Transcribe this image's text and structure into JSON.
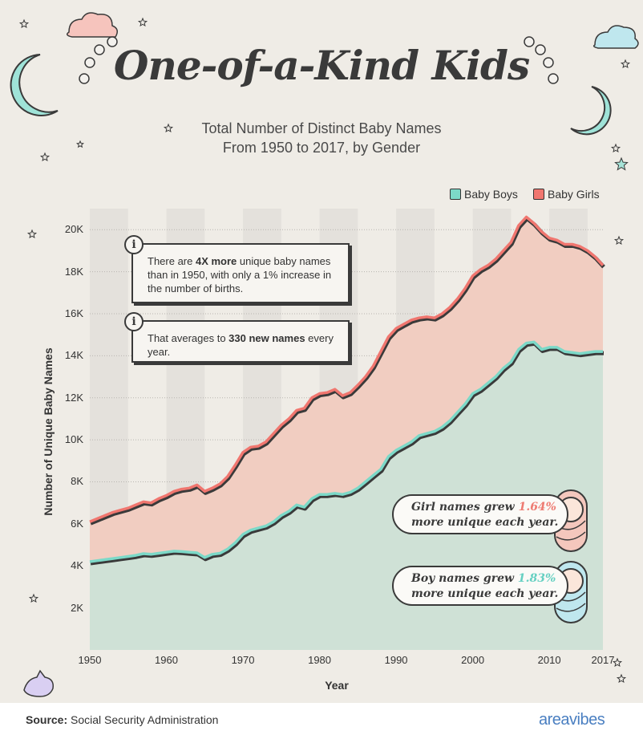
{
  "title": "One-of-a-Kind Kids",
  "subtitle_line1": "Total Number of Distinct Baby Names",
  "subtitle_line2": "From 1950 to 2017, by Gender",
  "legend": {
    "boys": "Baby Boys",
    "girls": "Baby Girls"
  },
  "colors": {
    "boys": "#7cd9c8",
    "girls": "#f0766f",
    "boys_fill": "#cfe1d6",
    "girls_fill": "#f1cdc1",
    "outline": "#3a3a3a",
    "band": "#e4e1dc",
    "grid": "#b8b5b0"
  },
  "notes": [
    {
      "pre": "There are ",
      "bold": "4X more",
      "post": " unique baby names than in 1950, with only a 1% increase in the number of births."
    },
    {
      "pre": "That averages to ",
      "bold": "330 new names",
      "post": " every year."
    }
  ],
  "callouts": {
    "girls": {
      "pre": "Girl names grew ",
      "value": "1.64%",
      "post": "more unique each year."
    },
    "boys": {
      "pre": "Boy names grew ",
      "value": "1.83%",
      "post": "more unique each year."
    }
  },
  "footer": {
    "source_label": "Source:",
    "source_text": "Social Security Administration",
    "brand": "areavibes"
  },
  "chart_data": {
    "type": "area",
    "title": "Total Number of Distinct Baby Names From 1950 to 2017, by Gender",
    "xlabel": "Year",
    "ylabel": "Number of Unique Baby Names",
    "xlim": [
      1950,
      2017
    ],
    "ylim": [
      0,
      21000
    ],
    "x_ticks": [
      1950,
      1960,
      1970,
      1980,
      1990,
      2000,
      2010,
      2017
    ],
    "x_tick_labels": [
      "1950",
      "1960",
      "1970",
      "1980",
      "1990",
      "2000",
      "2010",
      "2017"
    ],
    "y_ticks": [
      2000,
      4000,
      6000,
      8000,
      10000,
      12000,
      14000,
      16000,
      18000,
      20000
    ],
    "y_tick_labels": [
      "2K",
      "4K",
      "6K",
      "8K",
      "10K",
      "12K",
      "14K",
      "16K",
      "18K",
      "20K"
    ],
    "legend_position": "top-right",
    "x": [
      1950,
      1951,
      1952,
      1953,
      1954,
      1955,
      1956,
      1957,
      1958,
      1959,
      1960,
      1961,
      1962,
      1963,
      1964,
      1965,
      1966,
      1967,
      1968,
      1969,
      1970,
      1971,
      1972,
      1973,
      1974,
      1975,
      1976,
      1977,
      1978,
      1979,
      1980,
      1981,
      1982,
      1983,
      1984,
      1985,
      1986,
      1987,
      1988,
      1989,
      1990,
      1991,
      1992,
      1993,
      1994,
      1995,
      1996,
      1997,
      1998,
      1999,
      2000,
      2001,
      2002,
      2003,
      2004,
      2005,
      2006,
      2007,
      2008,
      2009,
      2010,
      2011,
      2012,
      2013,
      2014,
      2015,
      2016,
      2017
    ],
    "series": [
      {
        "name": "Baby Boys",
        "values": [
          4200,
          4250,
          4300,
          4350,
          4400,
          4450,
          4500,
          4580,
          4550,
          4600,
          4650,
          4700,
          4680,
          4650,
          4620,
          4400,
          4550,
          4600,
          4800,
          5100,
          5500,
          5700,
          5800,
          5900,
          6100,
          6400,
          6600,
          6900,
          6800,
          7200,
          7400,
          7400,
          7450,
          7400,
          7500,
          7700,
          8000,
          8300,
          8600,
          9200,
          9500,
          9700,
          9900,
          10200,
          10300,
          10400,
          10600,
          10900,
          11300,
          11700,
          12200,
          12400,
          12700,
          13000,
          13400,
          13700,
          14300,
          14600,
          14650,
          14300,
          14400,
          14400,
          14200,
          14150,
          14100,
          14150,
          14200,
          14200
        ]
      },
      {
        "name": "Baby Girls",
        "values": [
          6100,
          6250,
          6400,
          6550,
          6650,
          6750,
          6900,
          7050,
          7000,
          7200,
          7350,
          7550,
          7650,
          7700,
          7850,
          7550,
          7700,
          7900,
          8250,
          8800,
          9400,
          9650,
          9700,
          9900,
          10300,
          10700,
          11000,
          11400,
          11500,
          12000,
          12200,
          12250,
          12400,
          12100,
          12250,
          12600,
          13000,
          13500,
          14200,
          14900,
          15300,
          15500,
          15700,
          15800,
          15850,
          15800,
          16000,
          16300,
          16700,
          17200,
          17800,
          18100,
          18300,
          18600,
          19000,
          19400,
          20200,
          20600,
          20300,
          19900,
          19600,
          19500,
          19300,
          19300,
          19200,
          19000,
          18700,
          18300
        ]
      }
    ]
  }
}
